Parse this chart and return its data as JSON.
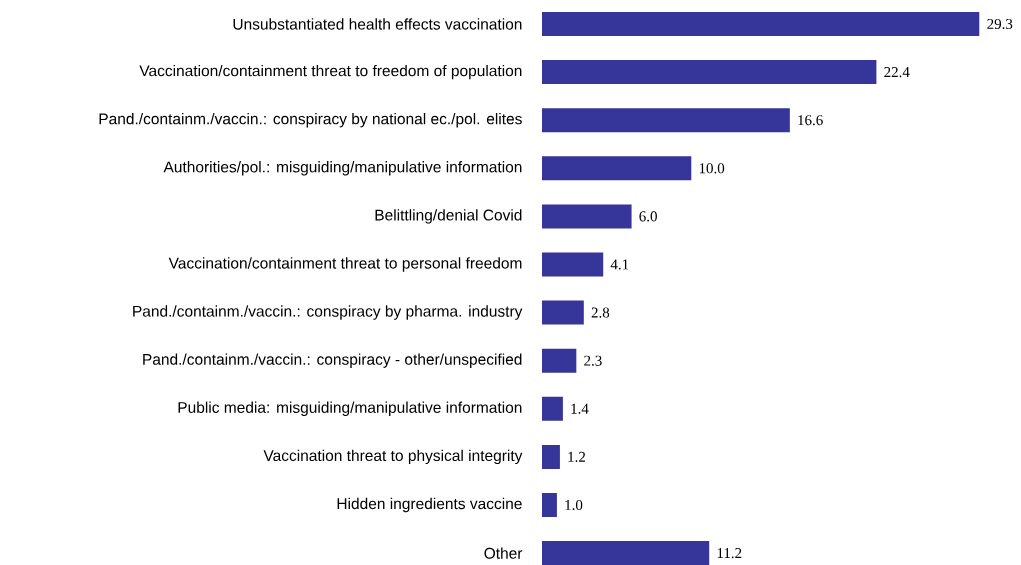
{
  "chart_data": {
    "type": "bar",
    "orientation": "horizontal",
    "categories": [
      "Unsubstantiated health effects vaccination",
      "Vaccination/containment threat to freedom of population",
      "Pand./containm./vaccin.: conspiracy by national ec./pol. elites",
      "Authorities/pol.: misguiding/manipulative information",
      "Belittling/denial Covid",
      "Vaccination/containment threat to personal freedom",
      "Pand./containm./vaccin.: conspiracy by pharma. industry",
      "Pand./containm./vaccin.: conspiracy - other/unspecified",
      "Public media: misguiding/manipulative information",
      "Vaccination threat to physical integrity",
      "Hidden ingredients vaccine",
      "Other"
    ],
    "values": [
      29.3,
      22.4,
      16.6,
      10.0,
      6.0,
      4.1,
      2.8,
      2.3,
      1.4,
      1.2,
      1.0,
      11.2
    ],
    "value_labels": [
      "29.3",
      "22.4",
      "16.6",
      "10.0",
      "6.0",
      "4.1",
      "2.8",
      "2.3",
      "1.4",
      "1.2",
      "1.0",
      "11.2"
    ],
    "color": "#35359a",
    "tick_labels": "y"
  }
}
